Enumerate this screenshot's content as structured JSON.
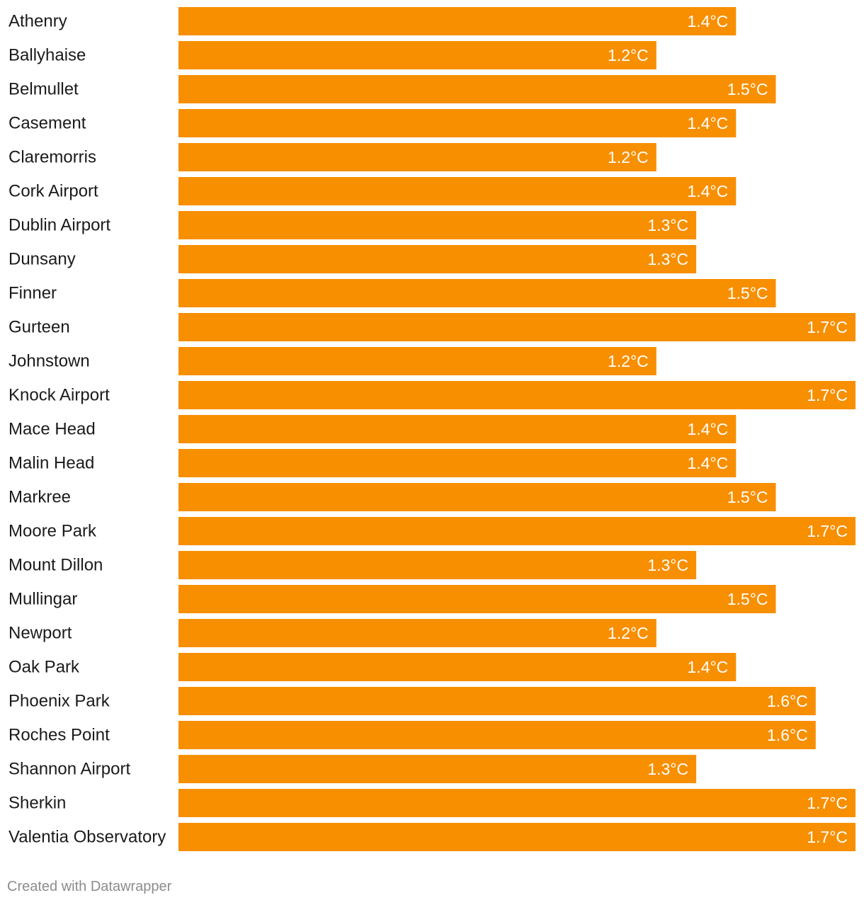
{
  "chart_data": {
    "type": "bar",
    "orientation": "horizontal",
    "categories": [
      "Athenry",
      "Ballyhaise",
      "Belmullet",
      "Casement",
      "Claremorris",
      "Cork Airport",
      "Dublin Airport",
      "Dunsany",
      "Finner",
      "Gurteen",
      "Johnstown",
      "Knock Airport",
      "Mace Head",
      "Malin Head",
      "Markree",
      "Moore Park",
      "Mount Dillon",
      "Mullingar",
      "Newport",
      "Oak Park",
      "Phoenix Park",
      "Roches Point",
      "Shannon Airport",
      "Sherkin",
      "Valentia Observatory"
    ],
    "values": [
      1.4,
      1.2,
      1.5,
      1.4,
      1.2,
      1.4,
      1.3,
      1.3,
      1.5,
      1.7,
      1.2,
      1.7,
      1.4,
      1.4,
      1.5,
      1.7,
      1.3,
      1.5,
      1.2,
      1.4,
      1.6,
      1.6,
      1.3,
      1.7,
      1.7
    ],
    "labels": [
      "1.4°C",
      "1.2°C",
      "1.5°C",
      "1.4°C",
      "1.2°C",
      "1.4°C",
      "1.3°C",
      "1.3°C",
      "1.5°C",
      "1.7°C",
      "1.2°C",
      "1.7°C",
      "1.4°C",
      "1.4°C",
      "1.5°C",
      "1.7°C",
      "1.3°C",
      "1.5°C",
      "1.2°C",
      "1.4°C",
      "1.6°C",
      "1.6°C",
      "1.3°C",
      "1.7°C",
      "1.7°C"
    ],
    "unit": "°C",
    "xlim": [
      0,
      1.7
    ],
    "grid": false,
    "bar_color": "#f78f00",
    "value_label_color": "#ffffff",
    "title": "",
    "xlabel": "",
    "ylabel": ""
  },
  "footer": {
    "credit": "Created with Datawrapper"
  }
}
